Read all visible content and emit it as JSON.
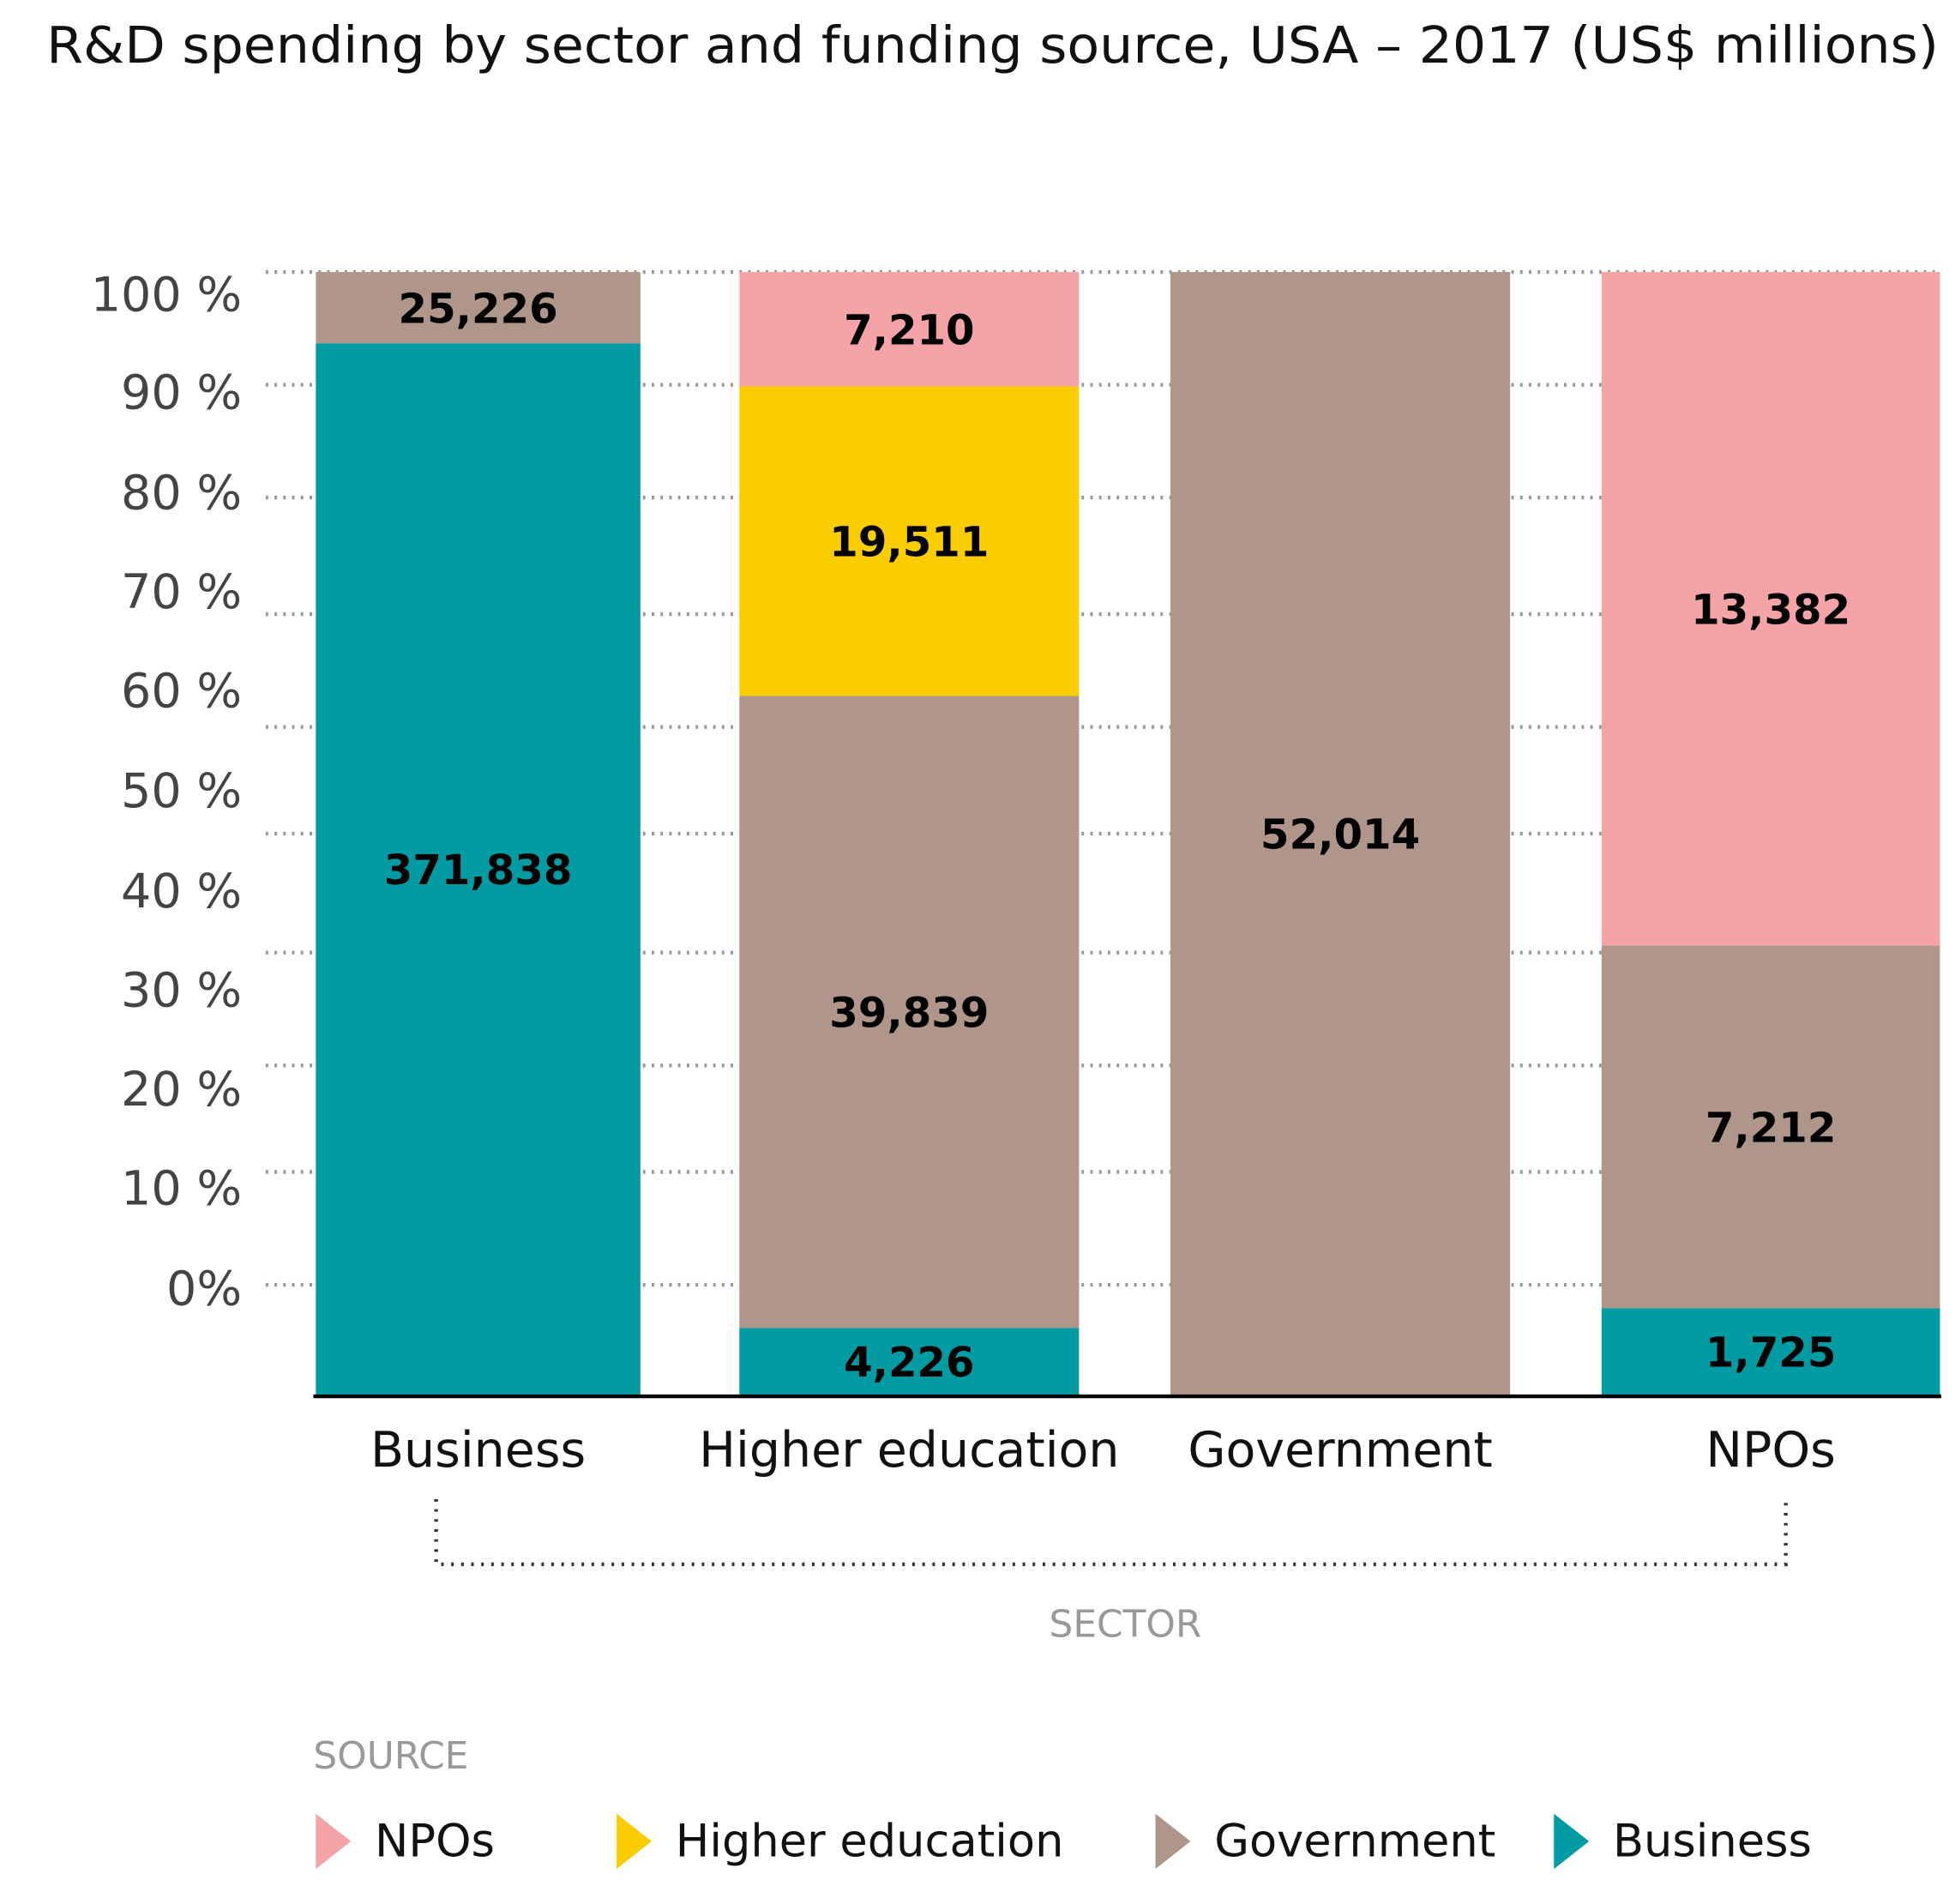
{
  "chart_data": {
    "type": "bar",
    "stacked": "percent",
    "title": "R&D spending by sector and funding source, USA – 2017 (US$ millions)",
    "xlabel": "SECTOR",
    "legend_title": "SOURCE",
    "legend_placement": "bottom",
    "grid": true,
    "ylim": [
      0,
      100
    ],
    "yticks": [
      "100 %",
      "90 %",
      "80 %",
      "70 %",
      "60 %",
      "50 %",
      "40 %",
      "30 %",
      "20 %",
      "10 %",
      "0%"
    ],
    "categories": [
      "Business",
      "Higher education",
      "Government",
      "NPOs"
    ],
    "series": [
      {
        "name": "Business",
        "color": "#009ba3",
        "values": [
          371838,
          4226,
          null,
          1725
        ],
        "labels": [
          "371,838",
          "4,226",
          "",
          "1,725"
        ]
      },
      {
        "name": "Government",
        "color": "#b0968a",
        "values": [
          25226,
          39839,
          52014,
          7212
        ],
        "labels": [
          "25,226",
          "39,839",
          "52,014",
          "7,212"
        ]
      },
      {
        "name": "Higher education",
        "color": "#f9cd00",
        "values": [
          null,
          19511,
          null,
          null
        ],
        "labels": [
          "",
          "19,511",
          "",
          ""
        ]
      },
      {
        "name": "NPOs",
        "color": "#f4a3a6",
        "values": [
          null,
          7210,
          null,
          13382
        ],
        "labels": [
          "",
          "7,210",
          "",
          "13,382"
        ]
      }
    ],
    "legend_order": [
      "NPOs",
      "Higher education",
      "Government",
      "Business"
    ]
  }
}
